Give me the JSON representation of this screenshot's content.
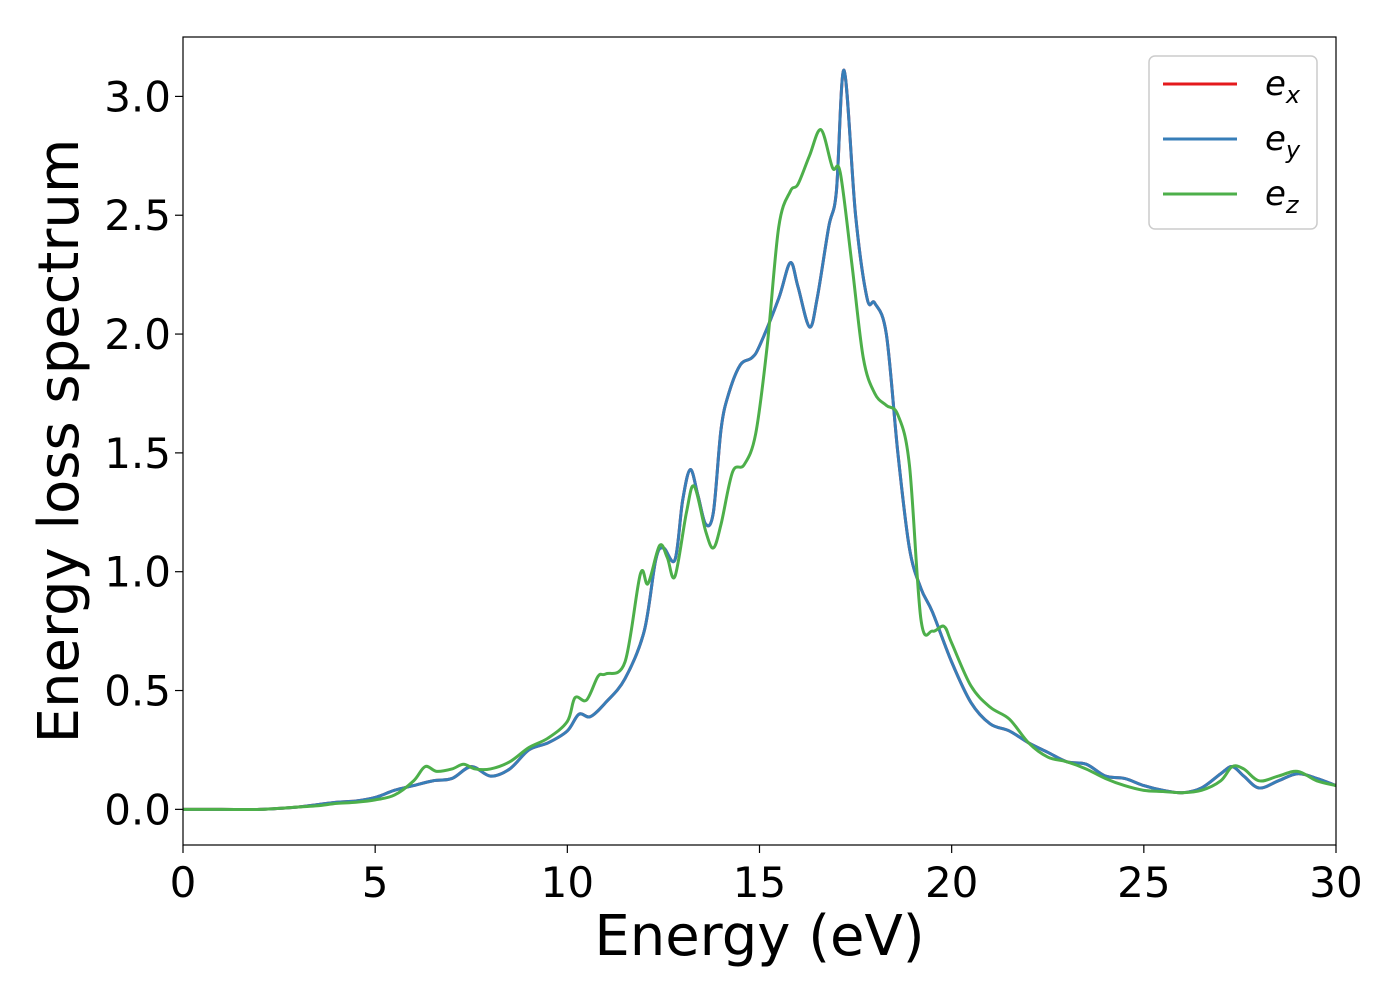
{
  "chart_data": {
    "type": "line",
    "title": "",
    "xlabel": "Energy (eV)",
    "ylabel": "Energy loss spectrum",
    "xlim": [
      0,
      30
    ],
    "ylim": [
      -0.15,
      3.25
    ],
    "xticks": [
      0,
      5,
      10,
      15,
      20,
      25,
      30
    ],
    "yticks": [
      0.0,
      0.5,
      1.0,
      1.5,
      2.0,
      2.5,
      3.0
    ],
    "xtick_labels": [
      "0",
      "5",
      "10",
      "15",
      "20",
      "25",
      "30"
    ],
    "ytick_labels": [
      "0.0",
      "0.5",
      "1.0",
      "1.5",
      "2.0",
      "2.5",
      "3.0"
    ],
    "grid": false,
    "legend_position": "top-right",
    "series": [
      {
        "name": "e_x",
        "legend_base": "e",
        "legend_sub": "x",
        "color": "#e41a1c",
        "x": [
          0,
          1,
          2,
          3,
          3.5,
          4,
          4.5,
          5,
          5.5,
          6,
          6.5,
          7,
          7.5,
          8,
          8.5,
          9,
          9.5,
          10,
          10.3,
          10.6,
          11,
          11.5,
          12,
          12.3,
          12.5,
          12.8,
          13.0,
          13.2,
          13.4,
          13.6,
          13.8,
          14.0,
          14.2,
          14.5,
          14.8,
          15.0,
          15.5,
          15.8,
          16.0,
          16.3,
          16.5,
          16.8,
          17.0,
          17.2,
          17.5,
          17.8,
          18.0,
          18.3,
          18.6,
          18.9,
          19.2,
          19.5,
          20.0,
          20.5,
          21.0,
          21.5,
          22.0,
          22.5,
          23.0,
          23.5,
          24.0,
          24.5,
          25.0,
          25.5,
          26.0,
          26.5,
          27.0,
          27.3,
          27.6,
          28.0,
          28.5,
          29.0,
          29.5,
          30.0
        ],
        "y": [
          0.0,
          0.0,
          0.0,
          0.01,
          0.02,
          0.03,
          0.035,
          0.05,
          0.08,
          0.1,
          0.12,
          0.13,
          0.18,
          0.14,
          0.17,
          0.25,
          0.28,
          0.33,
          0.4,
          0.39,
          0.45,
          0.55,
          0.75,
          1.05,
          1.1,
          1.05,
          1.3,
          1.43,
          1.32,
          1.2,
          1.25,
          1.6,
          1.75,
          1.87,
          1.9,
          1.95,
          2.15,
          2.3,
          2.2,
          2.03,
          2.15,
          2.45,
          2.6,
          3.11,
          2.5,
          2.15,
          2.13,
          2.0,
          1.5,
          1.1,
          0.93,
          0.83,
          0.62,
          0.45,
          0.36,
          0.33,
          0.28,
          0.24,
          0.2,
          0.19,
          0.14,
          0.13,
          0.1,
          0.08,
          0.07,
          0.09,
          0.15,
          0.18,
          0.14,
          0.09,
          0.12,
          0.15,
          0.13,
          0.1
        ]
      },
      {
        "name": "e_y",
        "legend_base": "e",
        "legend_sub": "y",
        "color": "#377eb8",
        "x": [
          0,
          1,
          2,
          3,
          3.5,
          4,
          4.5,
          5,
          5.5,
          6,
          6.5,
          7,
          7.5,
          8,
          8.5,
          9,
          9.5,
          10,
          10.3,
          10.6,
          11,
          11.5,
          12,
          12.3,
          12.5,
          12.8,
          13.0,
          13.2,
          13.4,
          13.6,
          13.8,
          14.0,
          14.2,
          14.5,
          14.8,
          15.0,
          15.5,
          15.8,
          16.0,
          16.3,
          16.5,
          16.8,
          17.0,
          17.2,
          17.5,
          17.8,
          18.0,
          18.3,
          18.6,
          18.9,
          19.2,
          19.5,
          20.0,
          20.5,
          21.0,
          21.5,
          22.0,
          22.5,
          23.0,
          23.5,
          24.0,
          24.5,
          25.0,
          25.5,
          26.0,
          26.5,
          27.0,
          27.3,
          27.6,
          28.0,
          28.5,
          29.0,
          29.5,
          30.0
        ],
        "y": [
          0.0,
          0.0,
          0.0,
          0.01,
          0.02,
          0.03,
          0.035,
          0.05,
          0.08,
          0.1,
          0.12,
          0.13,
          0.18,
          0.14,
          0.17,
          0.25,
          0.28,
          0.33,
          0.4,
          0.39,
          0.45,
          0.55,
          0.75,
          1.05,
          1.1,
          1.05,
          1.3,
          1.43,
          1.32,
          1.2,
          1.25,
          1.6,
          1.75,
          1.87,
          1.9,
          1.95,
          2.15,
          2.3,
          2.2,
          2.03,
          2.15,
          2.45,
          2.6,
          3.11,
          2.5,
          2.15,
          2.13,
          2.0,
          1.5,
          1.1,
          0.93,
          0.83,
          0.62,
          0.45,
          0.36,
          0.33,
          0.28,
          0.24,
          0.2,
          0.19,
          0.14,
          0.13,
          0.1,
          0.08,
          0.07,
          0.09,
          0.15,
          0.18,
          0.14,
          0.09,
          0.12,
          0.15,
          0.13,
          0.1
        ]
      },
      {
        "name": "e_z",
        "legend_base": "e",
        "legend_sub": "z",
        "color": "#4daf4a",
        "x": [
          0,
          1,
          2,
          3,
          3.5,
          4,
          4.5,
          5,
          5.5,
          6,
          6.3,
          6.6,
          7,
          7.3,
          7.6,
          8,
          8.5,
          9,
          9.5,
          10,
          10.2,
          10.5,
          10.8,
          11,
          11.5,
          11.9,
          12.1,
          12.4,
          12.6,
          12.8,
          13.1,
          13.3,
          13.6,
          13.8,
          14.0,
          14.3,
          14.6,
          14.9,
          15.2,
          15.5,
          15.8,
          16.0,
          16.3,
          16.6,
          16.9,
          17.1,
          17.4,
          17.7,
          18.0,
          18.3,
          18.6,
          18.9,
          19.2,
          19.5,
          19.8,
          20.0,
          20.5,
          21.0,
          21.5,
          22.0,
          22.5,
          23.0,
          23.5,
          24.0,
          24.5,
          25.0,
          25.5,
          26.0,
          26.5,
          27.0,
          27.3,
          27.6,
          28.0,
          28.5,
          29.0,
          29.5,
          30.0
        ],
        "y": [
          0.0,
          0.0,
          0.0,
          0.01,
          0.015,
          0.025,
          0.03,
          0.04,
          0.06,
          0.12,
          0.18,
          0.16,
          0.17,
          0.19,
          0.17,
          0.17,
          0.2,
          0.26,
          0.3,
          0.37,
          0.47,
          0.46,
          0.56,
          0.57,
          0.62,
          0.99,
          0.95,
          1.11,
          1.06,
          0.98,
          1.25,
          1.36,
          1.17,
          1.1,
          1.2,
          1.42,
          1.45,
          1.58,
          1.95,
          2.45,
          2.6,
          2.63,
          2.75,
          2.86,
          2.7,
          2.68,
          2.3,
          1.9,
          1.75,
          1.7,
          1.66,
          1.45,
          0.8,
          0.75,
          0.77,
          0.7,
          0.52,
          0.43,
          0.38,
          0.28,
          0.22,
          0.2,
          0.17,
          0.13,
          0.1,
          0.08,
          0.075,
          0.07,
          0.08,
          0.12,
          0.18,
          0.17,
          0.12,
          0.14,
          0.16,
          0.12,
          0.1
        ]
      }
    ]
  }
}
